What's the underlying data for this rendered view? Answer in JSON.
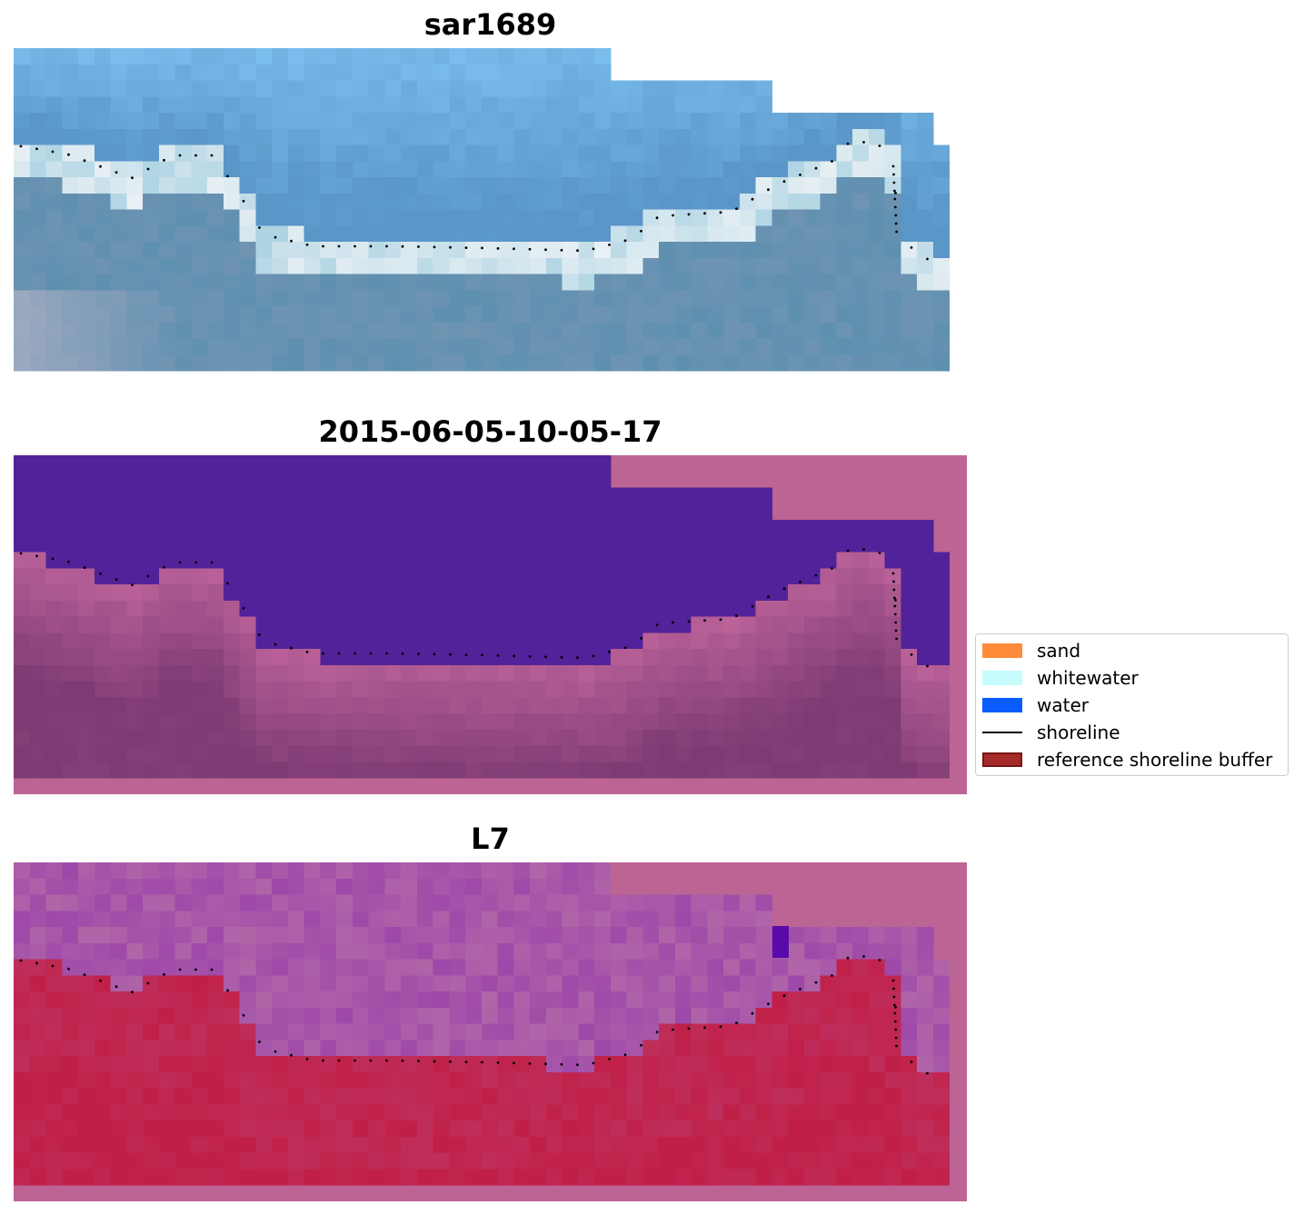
{
  "panels": [
    {
      "title": "sar1689"
    },
    {
      "title": "2015-06-05-10-05-17"
    },
    {
      "title": "L7"
    }
  ],
  "legend": [
    {
      "label": "sand",
      "color": "#ff8c3a",
      "kind": "patch"
    },
    {
      "label": "whitewater",
      "color": "#c8fcfc",
      "kind": "patch"
    },
    {
      "label": "water",
      "color": "#0a5cff",
      "kind": "patch"
    },
    {
      "label": "shoreline",
      "color": "#000000",
      "kind": "line"
    },
    {
      "label": "reference shoreline buffer",
      "color": "#a52a2a",
      "edge": "#7a1515",
      "kind": "patch"
    }
  ],
  "colors": {
    "rgb_sky": "#7cc0f0",
    "rgb_sea": "#5f90b0",
    "rgb_surf": "#e8f0f4",
    "class_water": "#52229a",
    "class_background": "#bc6494",
    "class_land": "#a05588",
    "ndwi_water_side": "#b065a8",
    "ndwi_land_side": "#c02048",
    "shoreline_points": "#000000"
  }
}
